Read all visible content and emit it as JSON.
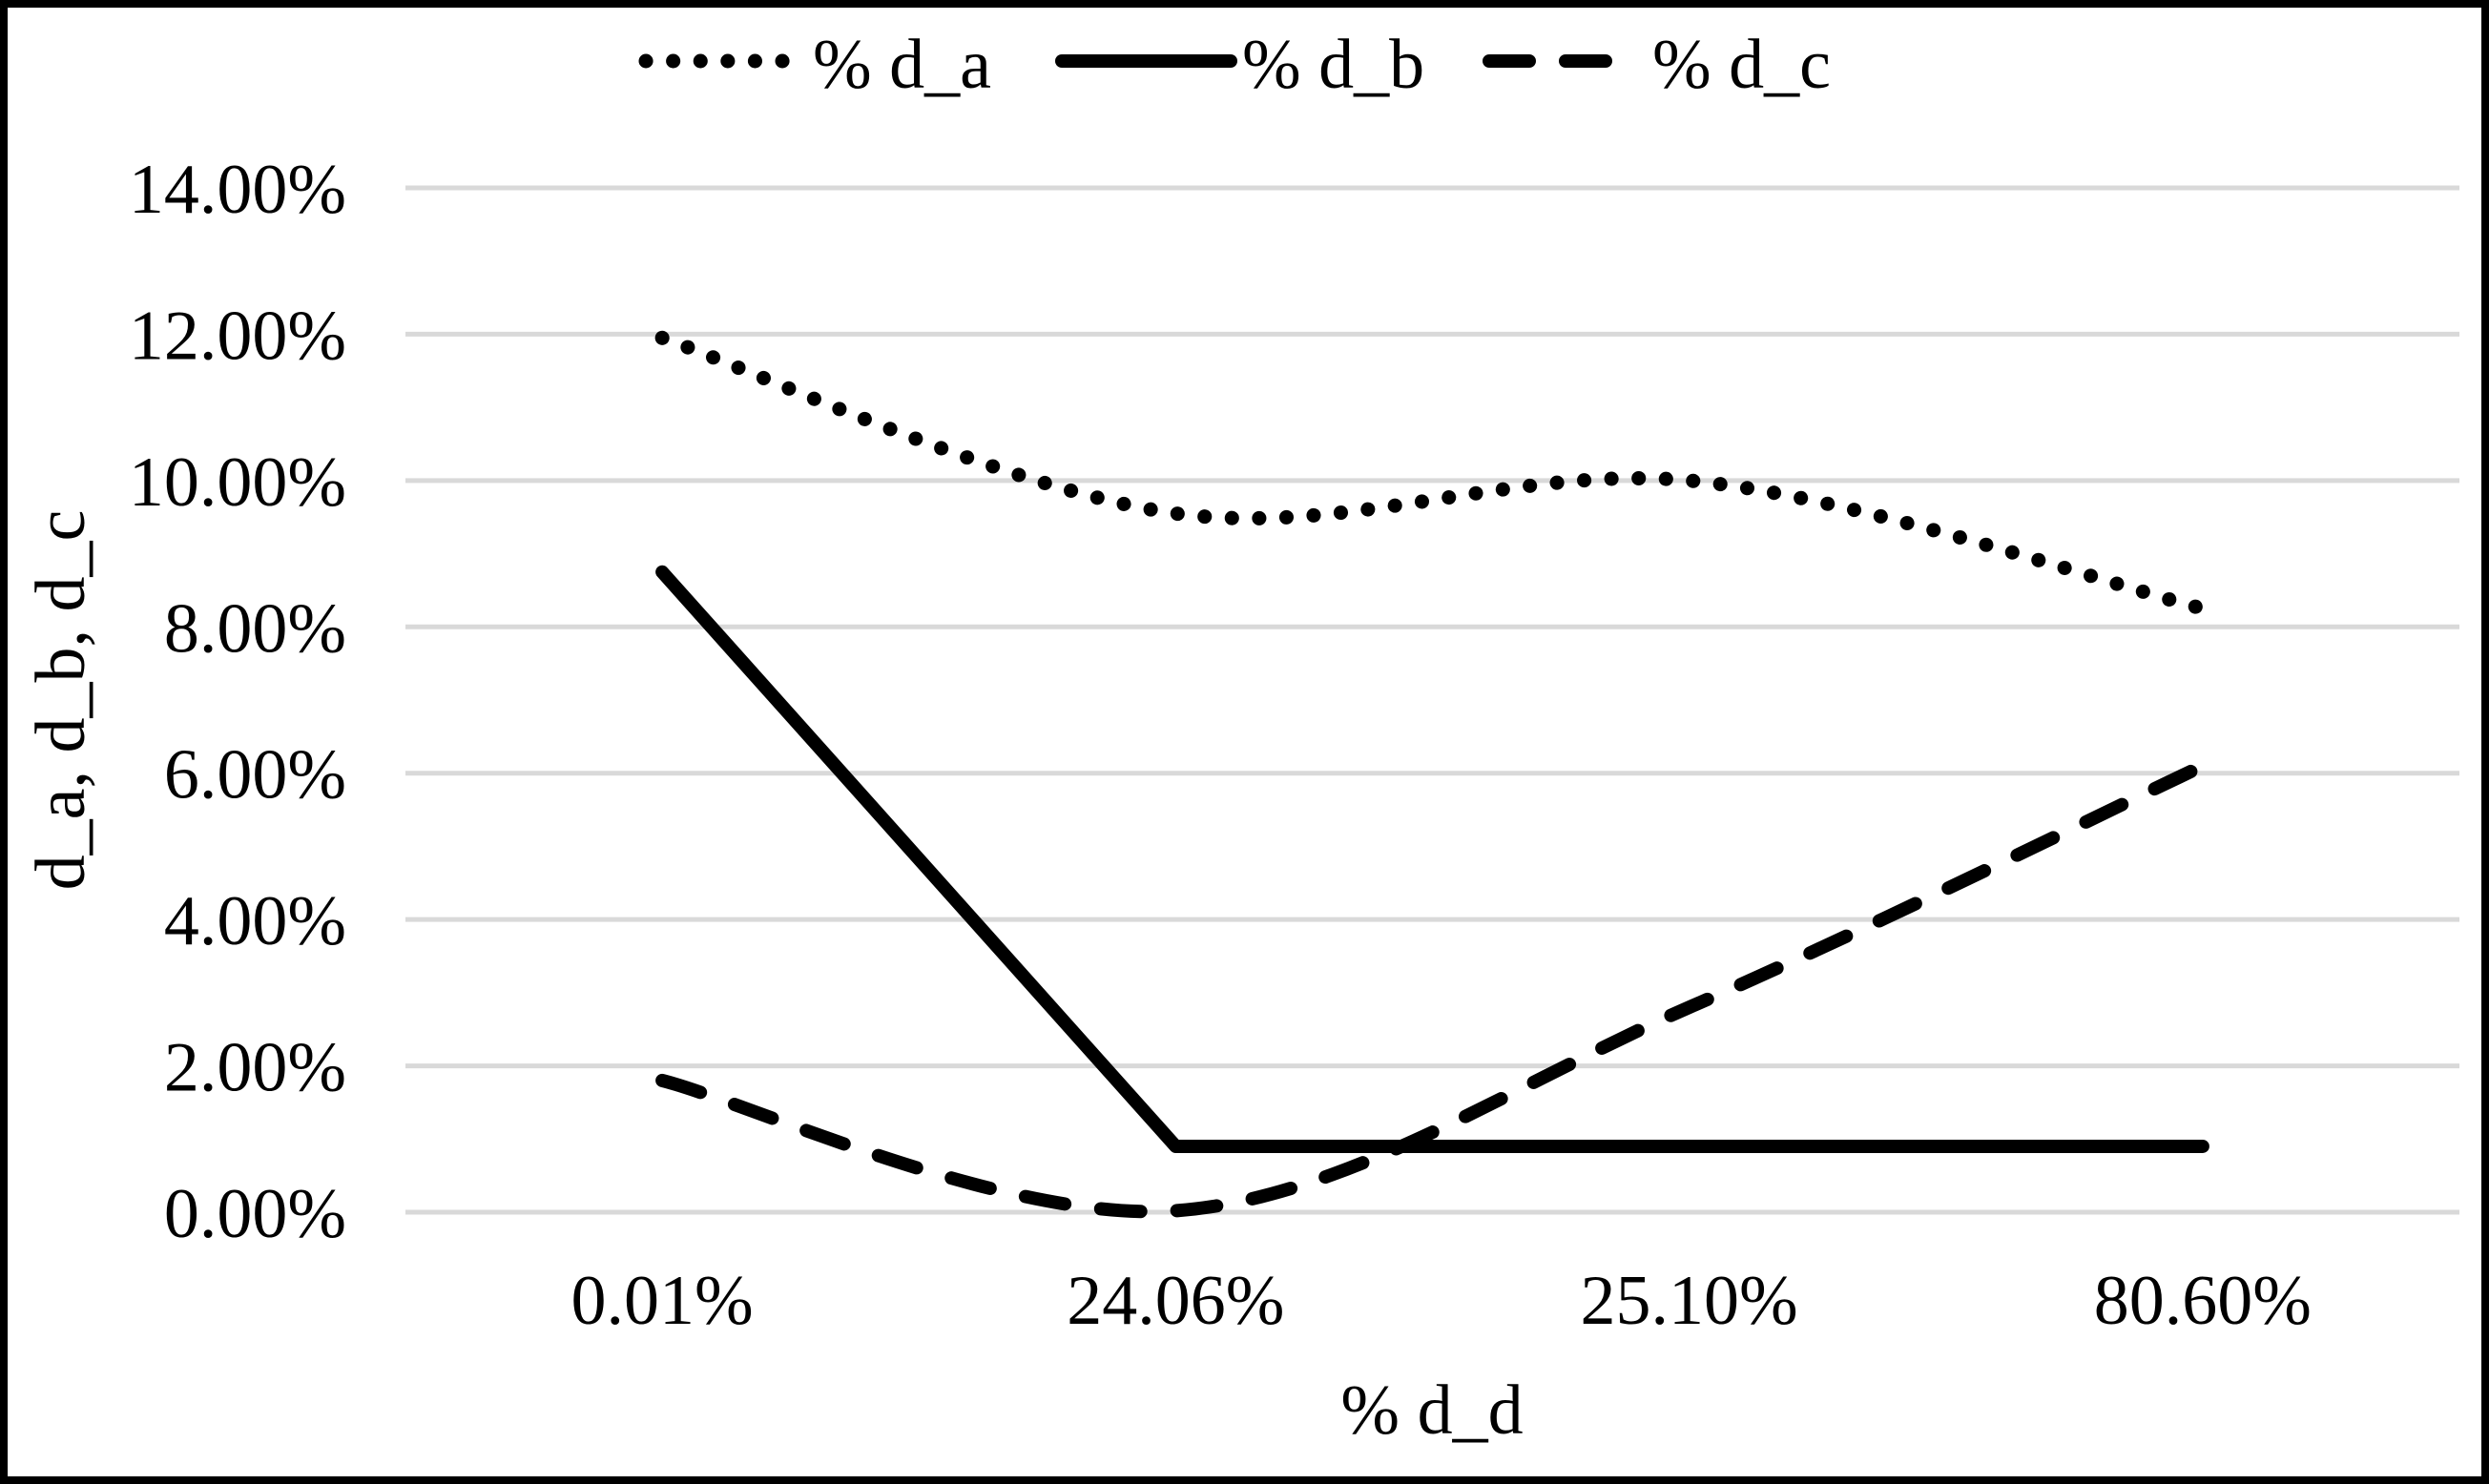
{
  "chart_data": {
    "type": "line",
    "title": "",
    "categories": [
      "0.01%",
      "24.06%",
      "25.10%",
      "80.60%"
    ],
    "xlabel": "% d_d",
    "ylabel": "d_a, d_b, d_c",
    "ylim": [
      0,
      14
    ],
    "ytick_step": 2,
    "ytick_labels": [
      "0.00%",
      "2.00%",
      "4.00%",
      "6.00%",
      "8.00%",
      "10.00%",
      "12.00%",
      "14.00%"
    ],
    "grid": true,
    "legend_position": "top-center",
    "series": [
      {
        "name": "% d_a",
        "style": "dotted",
        "smooth": true,
        "values": [
          11.95,
          9.55,
          10.0,
          8.25
        ]
      },
      {
        "name": "% d_b",
        "style": "solid",
        "smooth": false,
        "values": [
          8.75,
          0.9,
          0.9,
          0.9
        ]
      },
      {
        "name": "% d_c",
        "style": "dashed",
        "smooth": true,
        "values": [
          1.8,
          0.02,
          2.8,
          6.1
        ]
      }
    ],
    "colors": {
      "series": "#000000",
      "gridline": "#d9d9d9",
      "background": "#ffffff",
      "border": "#000000"
    }
  }
}
